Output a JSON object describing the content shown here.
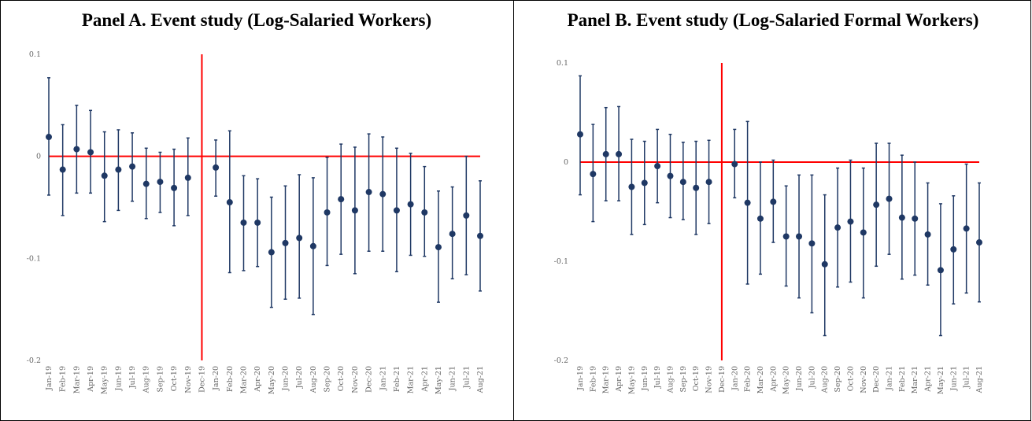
{
  "chart_data": [
    {
      "type": "errorbar",
      "title": "Panel A. Event study (Log-Salaried Workers)",
      "categories": [
        "Jan-19",
        "Feb-19",
        "Mar-19",
        "Apr-19",
        "May-19",
        "Jun-19",
        "Jul-19",
        "Aug-19",
        "Sep-19",
        "Oct-19",
        "Nov-19",
        "Dec-19",
        "Jan-20",
        "Feb-20",
        "Mar-20",
        "Apr-20",
        "May-20",
        "Jun-20",
        "Jul-20",
        "Aug-20",
        "Sep-20",
        "Oct-20",
        "Nov-20",
        "Dec-20",
        "Jan-21",
        "Feb-21",
        "Mar-21",
        "Apr-21",
        "May-21",
        "Jun-21",
        "Jul-21",
        "Aug-21"
      ],
      "series": [
        {
          "color": "#1f3864",
          "values": [
            0.019,
            -0.013,
            0.007,
            0.004,
            -0.019,
            -0.013,
            -0.01,
            -0.027,
            -0.025,
            -0.031,
            -0.021,
            null,
            -0.011,
            -0.045,
            -0.065,
            -0.065,
            -0.094,
            -0.085,
            -0.08,
            -0.088,
            -0.055,
            -0.042,
            -0.053,
            -0.035,
            -0.037,
            -0.053,
            -0.047,
            -0.055,
            -0.089,
            -0.076,
            -0.058,
            -0.078
          ],
          "lower": [
            -0.038,
            -0.058,
            -0.036,
            -0.036,
            -0.064,
            -0.053,
            -0.044,
            -0.061,
            -0.055,
            -0.068,
            -0.058,
            null,
            -0.039,
            -0.114,
            -0.112,
            -0.108,
            -0.148,
            -0.14,
            -0.139,
            -0.155,
            -0.107,
            -0.096,
            -0.115,
            -0.093,
            -0.093,
            -0.113,
            -0.097,
            -0.098,
            -0.143,
            -0.12,
            -0.116,
            -0.132
          ],
          "upper": [
            0.077,
            0.031,
            0.05,
            0.045,
            0.024,
            0.026,
            0.023,
            0.008,
            0.004,
            0.007,
            0.018,
            null,
            0.016,
            0.025,
            -0.019,
            -0.022,
            -0.04,
            -0.029,
            -0.018,
            -0.021,
            -0.001,
            0.012,
            0.009,
            0.022,
            0.019,
            0.008,
            0.003,
            -0.01,
            -0.034,
            -0.03,
            0.0,
            -0.024
          ]
        }
      ],
      "ylim": [
        -0.2,
        0.1
      ],
      "yticks": [
        -0.2,
        -0.1,
        0,
        0.1
      ],
      "reference_color": "#ff0000"
    },
    {
      "type": "errorbar",
      "title": "Panel B. Event study (Log-Salaried Formal Workers)",
      "categories": [
        "Jan-19",
        "Feb-19",
        "Mar-19",
        "Apr-19",
        "May-19",
        "Jun-19",
        "Jul-19",
        "Aug-19",
        "Sep-19",
        "Oct-19",
        "Nov-19",
        "Dec-19",
        "Jan-20",
        "Feb-20",
        "Mar-20",
        "Apr-20",
        "May-20",
        "Jun-20",
        "Jul-20",
        "Aug-20",
        "Sep-20",
        "Oct-20",
        "Nov-20",
        "Dec-20",
        "Jan-21",
        "Feb-21",
        "Mar-21",
        "Apr-21",
        "May-21",
        "Jun-21",
        "Jul-21",
        "Aug-21"
      ],
      "series": [
        {
          "color": "#1f3864",
          "values": [
            0.028,
            -0.012,
            0.008,
            0.008,
            -0.025,
            -0.021,
            -0.004,
            -0.014,
            -0.02,
            -0.026,
            -0.02,
            null,
            -0.002,
            -0.041,
            -0.057,
            -0.04,
            -0.075,
            -0.075,
            -0.082,
            -0.103,
            -0.066,
            -0.06,
            -0.071,
            -0.043,
            -0.037,
            -0.056,
            -0.057,
            -0.073,
            -0.109,
            -0.088,
            -0.067,
            -0.081
          ],
          "lower": [
            -0.033,
            -0.06,
            -0.039,
            -0.039,
            -0.073,
            -0.063,
            -0.041,
            -0.056,
            -0.058,
            -0.073,
            -0.062,
            null,
            -0.036,
            -0.123,
            -0.113,
            -0.081,
            -0.125,
            -0.137,
            -0.152,
            -0.175,
            -0.126,
            -0.121,
            -0.137,
            -0.105,
            -0.093,
            -0.118,
            -0.114,
            -0.124,
            -0.175,
            -0.143,
            -0.132,
            -0.141
          ],
          "upper": [
            0.087,
            0.038,
            0.055,
            0.056,
            0.023,
            0.021,
            0.033,
            0.028,
            0.02,
            0.021,
            0.022,
            null,
            0.033,
            0.041,
            0.0,
            0.002,
            -0.024,
            -0.013,
            -0.013,
            -0.033,
            -0.006,
            0.002,
            -0.006,
            0.019,
            0.019,
            0.007,
            0.0,
            -0.021,
            -0.042,
            -0.034,
            -0.002,
            -0.021
          ]
        }
      ],
      "ylim": [
        -0.2,
        0.1
      ],
      "yticks": [
        -0.2,
        -0.1,
        0,
        0.1
      ],
      "reference_color": "#ff0000"
    }
  ]
}
